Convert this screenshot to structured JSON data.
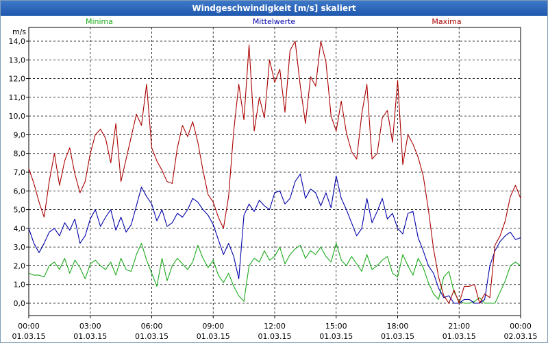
{
  "window": {
    "title": "Windgeschwindigkeit [m/s] skaliert"
  },
  "chart_data": {
    "type": "line",
    "title": "Windgeschwindigkeit [m/s] skaliert",
    "ylabel": "m/s",
    "xlabel": "",
    "ylim": [
      0,
      14
    ],
    "xlim": [
      0,
      24
    ],
    "grid": true,
    "y_ticks": [
      "0,0",
      "1,0",
      "2,0",
      "3,0",
      "4,0",
      "5,0",
      "6,0",
      "7,0",
      "8,0",
      "9,0",
      "10,0",
      "11,0",
      "12,0",
      "13,0",
      "14,0"
    ],
    "x_ticks": [
      {
        "time": "00:00",
        "date": "01.03.15"
      },
      {
        "time": "03:00",
        "date": "01.03.15"
      },
      {
        "time": "06:00",
        "date": "01.03.15"
      },
      {
        "time": "09:00",
        "date": "01.03.15"
      },
      {
        "time": "12:00",
        "date": "01.03.15"
      },
      {
        "time": "15:00",
        "date": "01.03.15"
      },
      {
        "time": "18:00",
        "date": "01.03.15"
      },
      {
        "time": "21:00",
        "date": "01.03.15"
      },
      {
        "time": "00:00",
        "date": "02.03.15"
      }
    ],
    "series": [
      {
        "name": "Minima",
        "color": "#1aaa1a",
        "legend_pos": "left",
        "x": [
          0,
          0.25,
          0.5,
          0.75,
          1,
          1.25,
          1.5,
          1.75,
          2,
          2.25,
          2.5,
          2.75,
          3,
          3.25,
          3.5,
          3.75,
          4,
          4.25,
          4.5,
          4.75,
          5,
          5.25,
          5.5,
          5.75,
          6,
          6.25,
          6.5,
          6.75,
          7,
          7.25,
          7.5,
          7.75,
          8,
          8.25,
          8.5,
          8.75,
          9,
          9.25,
          9.5,
          9.75,
          10,
          10.25,
          10.5,
          10.75,
          11,
          11.25,
          11.5,
          11.75,
          12,
          12.25,
          12.5,
          12.75,
          13,
          13.25,
          13.5,
          13.75,
          14,
          14.25,
          14.5,
          14.75,
          15,
          15.25,
          15.5,
          15.75,
          16,
          16.25,
          16.5,
          16.75,
          17,
          17.25,
          17.5,
          17.75,
          18,
          18.25,
          18.5,
          18.75,
          19,
          19.25,
          19.5,
          19.75,
          20,
          20.25,
          20.5,
          20.75,
          21,
          21.25,
          21.5,
          21.75,
          22,
          22.25,
          22.5,
          22.75,
          23,
          23.25,
          23.5,
          23.75,
          24
        ],
        "values": [
          1.6,
          1.5,
          1.5,
          1.4,
          2.0,
          2.2,
          1.8,
          2.4,
          1.6,
          2.3,
          1.9,
          1.3,
          2.1,
          2.3,
          2.0,
          1.8,
          2.2,
          1.5,
          2.4,
          1.8,
          1.7,
          2.6,
          3.2,
          2.3,
          1.6,
          0.9,
          2.4,
          1.2,
          2.0,
          2.4,
          2.1,
          1.8,
          2.2,
          3.1,
          2.4,
          1.9,
          2.3,
          1.5,
          1.1,
          1.6,
          0.9,
          0.4,
          0.1,
          2.0,
          2.4,
          2.2,
          2.8,
          2.3,
          2.5,
          3.0,
          2.1,
          2.6,
          2.9,
          3.1,
          2.4,
          2.8,
          2.6,
          3.0,
          2.5,
          2.2,
          3.2,
          2.3,
          2.0,
          2.5,
          2.1,
          1.7,
          2.6,
          1.8,
          2.0,
          2.3,
          2.5,
          1.6,
          1.4,
          2.6,
          2.0,
          1.5,
          2.4,
          1.9,
          1.1,
          0.5,
          0.2,
          1.4,
          1.7,
          0.6,
          0.1,
          0.0,
          0.0,
          0.1,
          0.3,
          0.0,
          0.0,
          0.0,
          0.6,
          1.2,
          2.0,
          2.2,
          2.0
        ]
      },
      {
        "name": "Mittelwerte",
        "color": "#0000aa",
        "legend_pos": "center",
        "x": [
          0,
          0.25,
          0.5,
          0.75,
          1,
          1.25,
          1.5,
          1.75,
          2,
          2.25,
          2.5,
          2.75,
          3,
          3.25,
          3.5,
          3.75,
          4,
          4.25,
          4.5,
          4.75,
          5,
          5.25,
          5.5,
          5.75,
          6,
          6.25,
          6.5,
          6.75,
          7,
          7.25,
          7.5,
          7.75,
          8,
          8.25,
          8.5,
          8.75,
          9,
          9.25,
          9.5,
          9.75,
          10,
          10.25,
          10.5,
          10.75,
          11,
          11.25,
          11.5,
          11.75,
          12,
          12.25,
          12.5,
          12.75,
          13,
          13.25,
          13.5,
          13.75,
          14,
          14.25,
          14.5,
          14.75,
          15,
          15.25,
          15.5,
          15.75,
          16,
          16.25,
          16.5,
          16.75,
          17,
          17.25,
          17.5,
          17.75,
          18,
          18.25,
          18.5,
          18.75,
          19,
          19.25,
          19.5,
          19.75,
          20,
          20.25,
          20.5,
          20.75,
          21,
          21.25,
          21.5,
          21.75,
          22,
          22.25,
          22.5,
          22.75,
          23,
          23.25,
          23.5,
          23.75,
          24
        ],
        "values": [
          4.0,
          3.2,
          2.7,
          3.2,
          3.8,
          4.0,
          3.6,
          4.3,
          3.9,
          4.5,
          3.2,
          3.6,
          4.5,
          5.0,
          4.1,
          4.6,
          5.0,
          3.9,
          4.6,
          3.8,
          4.2,
          5.2,
          6.2,
          5.7,
          5.3,
          4.4,
          5.0,
          4.1,
          4.3,
          4.8,
          4.6,
          5.0,
          5.6,
          5.4,
          5.0,
          4.7,
          4.2,
          3.4,
          2.6,
          3.2,
          2.5,
          1.3,
          4.7,
          5.3,
          4.9,
          5.5,
          5.2,
          5.0,
          5.9,
          6.0,
          5.3,
          5.6,
          6.5,
          6.9,
          5.6,
          6.1,
          5.9,
          5.2,
          5.9,
          5.1,
          6.8,
          5.6,
          5.0,
          4.3,
          3.6,
          4.0,
          5.6,
          4.3,
          4.9,
          5.6,
          4.5,
          4.8,
          4.0,
          3.7,
          4.8,
          4.9,
          3.5,
          2.8,
          2.0,
          1.6,
          0.8,
          0.3,
          0.4,
          0.0,
          0.0,
          0.2,
          0.2,
          0.0,
          0.0,
          0.2,
          2.0,
          2.8,
          3.3,
          3.6,
          3.8,
          3.4,
          3.5
        ]
      },
      {
        "name": "Maxima",
        "color": "#aa0000",
        "legend_pos": "right",
        "x": [
          0,
          0.25,
          0.5,
          0.75,
          1,
          1.25,
          1.5,
          1.75,
          2,
          2.25,
          2.5,
          2.75,
          3,
          3.25,
          3.5,
          3.75,
          4,
          4.25,
          4.5,
          4.75,
          5,
          5.25,
          5.5,
          5.75,
          6,
          6.25,
          6.5,
          6.75,
          7,
          7.25,
          7.5,
          7.75,
          8,
          8.25,
          8.5,
          8.75,
          9,
          9.25,
          9.5,
          9.75,
          10,
          10.25,
          10.5,
          10.75,
          11,
          11.25,
          11.5,
          11.75,
          12,
          12.25,
          12.5,
          12.75,
          13,
          13.25,
          13.5,
          13.75,
          14,
          14.25,
          14.5,
          14.75,
          15,
          15.25,
          15.5,
          15.75,
          16,
          16.25,
          16.5,
          16.75,
          17,
          17.25,
          17.5,
          17.75,
          18,
          18.25,
          18.5,
          18.75,
          19,
          19.25,
          19.5,
          19.75,
          20,
          20.25,
          20.5,
          20.75,
          21,
          21.25,
          21.5,
          21.75,
          22,
          22.25,
          22.5,
          22.75,
          23,
          23.25,
          23.5,
          23.75,
          24
        ],
        "values": [
          7.2,
          6.4,
          5.4,
          4.6,
          6.5,
          8.0,
          6.3,
          7.6,
          8.3,
          6.9,
          5.9,
          6.5,
          8.0,
          9.0,
          9.3,
          8.8,
          7.5,
          9.6,
          6.5,
          7.7,
          8.9,
          10.1,
          9.5,
          11.7,
          8.3,
          7.6,
          7.1,
          6.5,
          6.4,
          8.3,
          9.5,
          8.9,
          9.7,
          8.6,
          7.1,
          5.8,
          5.4,
          4.6,
          4.0,
          5.7,
          9.2,
          11.7,
          9.8,
          13.8,
          9.2,
          11.0,
          9.9,
          13.0,
          11.8,
          12.5,
          10.2,
          13.5,
          14.0,
          11.6,
          9.6,
          12.1,
          11.6,
          14.0,
          12.9,
          10.0,
          9.2,
          10.8,
          9.1,
          8.1,
          7.7,
          10.1,
          11.7,
          7.7,
          8.0,
          9.9,
          10.3,
          8.6,
          11.9,
          7.4,
          9.0,
          8.5,
          7.8,
          6.8,
          5.0,
          2.9,
          1.4,
          0.4,
          0.0,
          0.7,
          0.0,
          0.9,
          0.9,
          1.0,
          0.0,
          0.5,
          0.3,
          3.1,
          3.6,
          4.4,
          5.7,
          6.3,
          5.6
        ]
      }
    ]
  }
}
